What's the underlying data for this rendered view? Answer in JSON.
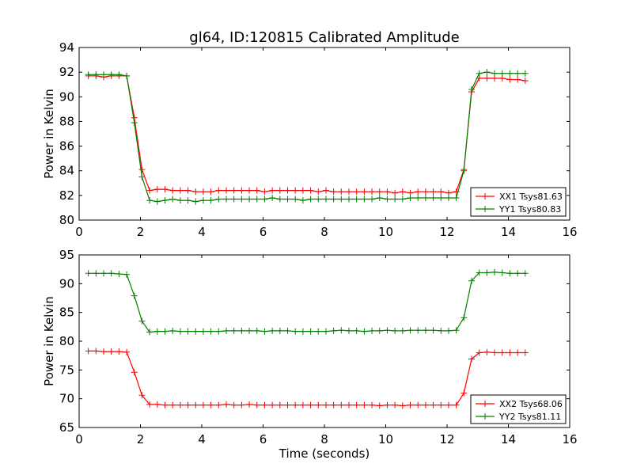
{
  "title": "gl64, ID:120815 Calibrated Amplitude",
  "chart_data": [
    {
      "type": "line",
      "title": "gl64, ID:120815 Calibrated Amplitude",
      "xlabel": "",
      "ylabel": "Power in Kelvin",
      "xlim": [
        0,
        16
      ],
      "ylim": [
        80,
        94
      ],
      "xticks": [
        0,
        2,
        4,
        6,
        8,
        10,
        12,
        14,
        16
      ],
      "yticks": [
        80,
        82,
        84,
        86,
        88,
        90,
        92,
        94
      ],
      "grid": false,
      "legend_position": "lower-right",
      "x": [
        0.3,
        0.55,
        0.8,
        1.05,
        1.3,
        1.55,
        1.8,
        2.05,
        2.3,
        2.55,
        2.8,
        3.05,
        3.3,
        3.55,
        3.8,
        4.05,
        4.3,
        4.55,
        4.8,
        5.05,
        5.3,
        5.55,
        5.8,
        6.05,
        6.3,
        6.55,
        6.8,
        7.05,
        7.3,
        7.55,
        7.8,
        8.05,
        8.3,
        8.55,
        8.8,
        9.05,
        9.3,
        9.55,
        9.8,
        10.05,
        10.3,
        10.55,
        10.8,
        11.05,
        11.3,
        11.55,
        11.8,
        12.05,
        12.3,
        12.55,
        12.8,
        13.05,
        13.3,
        13.55,
        13.8,
        14.05,
        14.3,
        14.55
      ],
      "series": [
        {
          "name": "XX1 Tsys81.63",
          "color": "#ff0000",
          "values": [
            91.7,
            91.7,
            91.6,
            91.7,
            91.7,
            91.7,
            88.3,
            84.1,
            82.4,
            82.5,
            82.5,
            82.4,
            82.4,
            82.4,
            82.3,
            82.3,
            82.3,
            82.4,
            82.4,
            82.4,
            82.4,
            82.4,
            82.4,
            82.3,
            82.4,
            82.4,
            82.4,
            82.4,
            82.4,
            82.4,
            82.3,
            82.4,
            82.3,
            82.3,
            82.3,
            82.3,
            82.3,
            82.3,
            82.3,
            82.3,
            82.2,
            82.3,
            82.2,
            82.3,
            82.3,
            82.3,
            82.3,
            82.2,
            82.3,
            84.1,
            90.4,
            91.5,
            91.5,
            91.5,
            91.5,
            91.4,
            91.4,
            91.3
          ]
        },
        {
          "name": "YY1 Tsys80.83",
          "color": "#008000",
          "values": [
            91.8,
            91.8,
            91.8,
            91.8,
            91.8,
            91.7,
            87.9,
            83.5,
            81.6,
            81.5,
            81.6,
            81.7,
            81.6,
            81.6,
            81.5,
            81.6,
            81.6,
            81.7,
            81.7,
            81.7,
            81.7,
            81.7,
            81.7,
            81.7,
            81.8,
            81.7,
            81.7,
            81.7,
            81.6,
            81.7,
            81.7,
            81.7,
            81.7,
            81.7,
            81.7,
            81.7,
            81.7,
            81.7,
            81.8,
            81.7,
            81.7,
            81.7,
            81.8,
            81.8,
            81.8,
            81.8,
            81.8,
            81.8,
            81.8,
            84.0,
            90.6,
            91.9,
            92.0,
            91.9,
            91.9,
            91.9,
            91.9,
            91.9
          ]
        }
      ]
    },
    {
      "type": "line",
      "title": "",
      "xlabel": "Time (seconds)",
      "ylabel": "Power in Kelvin",
      "xlim": [
        0,
        16
      ],
      "ylim": [
        65,
        95
      ],
      "xticks": [
        0,
        2,
        4,
        6,
        8,
        10,
        12,
        14,
        16
      ],
      "yticks": [
        65,
        70,
        75,
        80,
        85,
        90,
        95
      ],
      "grid": false,
      "legend_position": "lower-right",
      "x": [
        0.3,
        0.55,
        0.8,
        1.05,
        1.3,
        1.55,
        1.8,
        2.05,
        2.3,
        2.55,
        2.8,
        3.05,
        3.3,
        3.55,
        3.8,
        4.05,
        4.3,
        4.55,
        4.8,
        5.05,
        5.3,
        5.55,
        5.8,
        6.05,
        6.3,
        6.55,
        6.8,
        7.05,
        7.3,
        7.55,
        7.8,
        8.05,
        8.3,
        8.55,
        8.8,
        9.05,
        9.3,
        9.55,
        9.8,
        10.05,
        10.3,
        10.55,
        10.8,
        11.05,
        11.3,
        11.55,
        11.8,
        12.05,
        12.3,
        12.55,
        12.8,
        13.05,
        13.3,
        13.55,
        13.8,
        14.05,
        14.3,
        14.55
      ],
      "series": [
        {
          "name": "XX2 Tsys68.06",
          "color": "#ff0000",
          "values": [
            78.3,
            78.3,
            78.2,
            78.2,
            78.2,
            78.1,
            74.6,
            70.6,
            69.0,
            69.0,
            68.9,
            68.9,
            68.9,
            68.9,
            68.9,
            68.9,
            68.9,
            68.9,
            69.0,
            68.9,
            68.9,
            69.0,
            68.9,
            68.9,
            68.9,
            68.9,
            68.9,
            68.9,
            68.9,
            68.9,
            68.9,
            68.9,
            68.9,
            68.9,
            68.9,
            68.9,
            68.9,
            68.9,
            68.8,
            68.9,
            68.9,
            68.8,
            68.9,
            68.9,
            68.9,
            68.9,
            68.9,
            68.9,
            68.9,
            71.0,
            76.9,
            78.0,
            78.1,
            78.0,
            78.0,
            78.0,
            78.0,
            78.0
          ]
        },
        {
          "name": "YY2 Tsys81.11",
          "color": "#008000",
          "values": [
            91.8,
            91.8,
            91.8,
            91.8,
            91.7,
            91.6,
            87.9,
            83.5,
            81.6,
            81.7,
            81.7,
            81.8,
            81.7,
            81.7,
            81.7,
            81.7,
            81.7,
            81.7,
            81.8,
            81.8,
            81.8,
            81.8,
            81.8,
            81.7,
            81.8,
            81.8,
            81.8,
            81.7,
            81.7,
            81.7,
            81.7,
            81.7,
            81.8,
            81.9,
            81.8,
            81.8,
            81.7,
            81.8,
            81.8,
            81.9,
            81.8,
            81.8,
            81.9,
            81.9,
            81.9,
            81.9,
            81.8,
            81.8,
            81.9,
            84.1,
            90.5,
            91.9,
            91.9,
            92.0,
            91.9,
            91.8,
            91.8,
            91.8
          ]
        }
      ]
    }
  ]
}
